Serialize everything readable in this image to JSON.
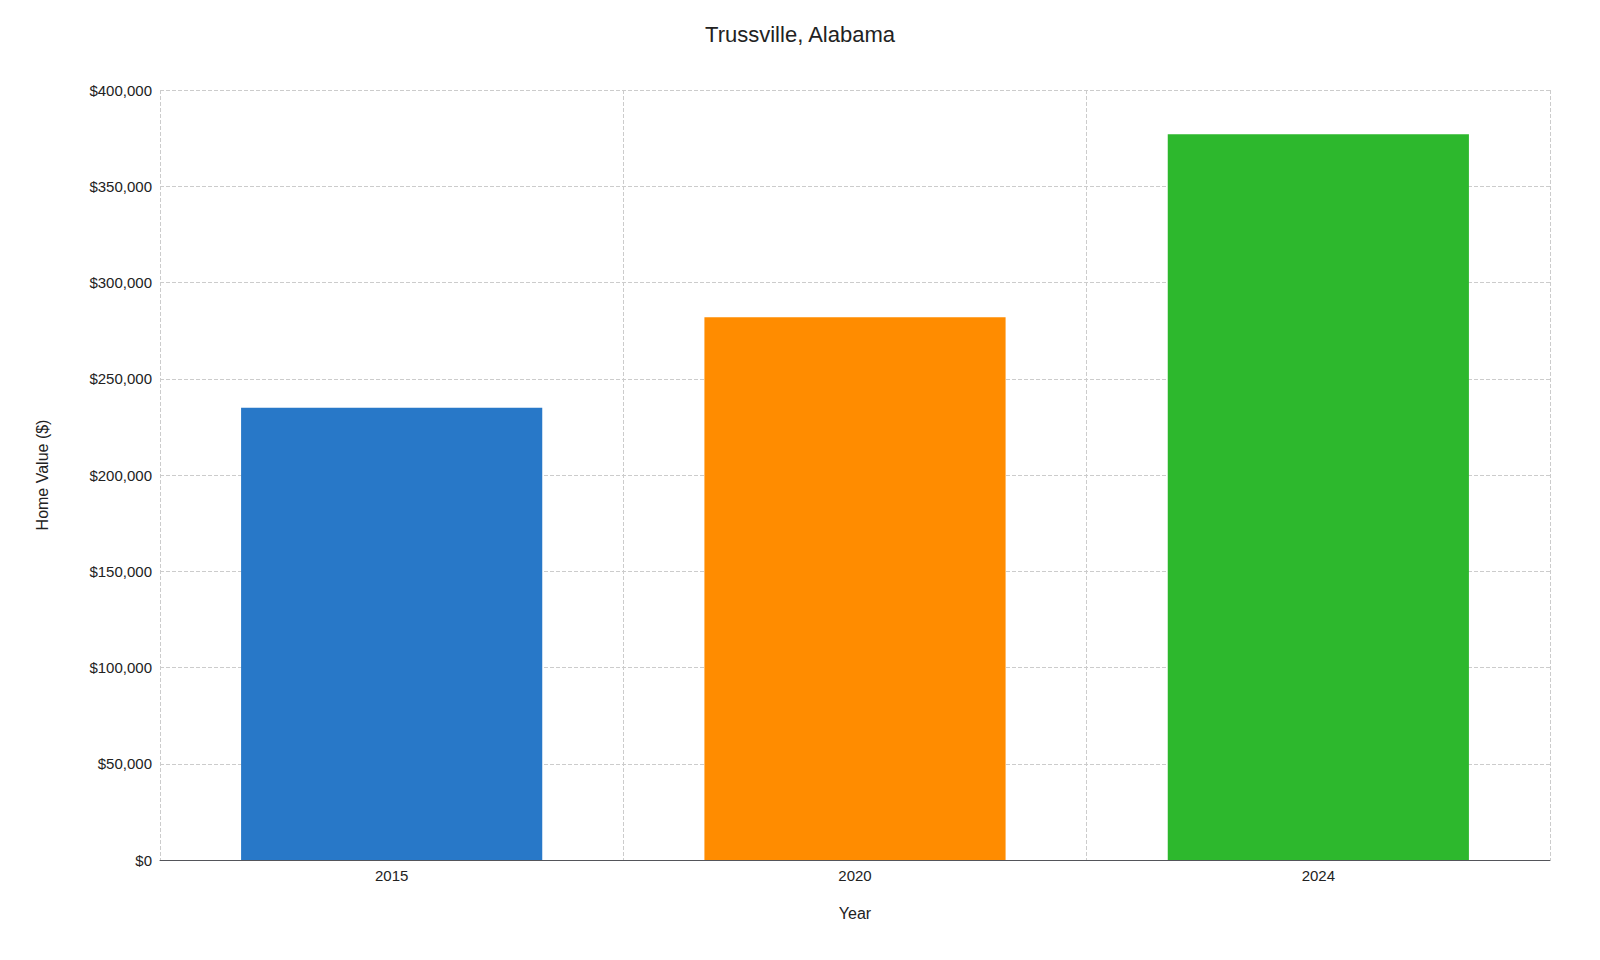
{
  "chart_data": {
    "type": "bar",
    "title": "Trussville, Alabama",
    "xlabel": "Year",
    "ylabel": "Home Value ($)",
    "categories": [
      "2015",
      "2020",
      "2024"
    ],
    "values": [
      235000,
      282000,
      377000
    ],
    "colors": [
      "#2878c8",
      "#ff8c00",
      "#2db82d"
    ],
    "ylim": [
      0,
      400000
    ],
    "yticks": [
      {
        "value": 0,
        "label": "$0"
      },
      {
        "value": 50000,
        "label": "$50,000"
      },
      {
        "value": 100000,
        "label": "$100,000"
      },
      {
        "value": 150000,
        "label": "$150,000"
      },
      {
        "value": 200000,
        "label": "$200,000"
      },
      {
        "value": 250000,
        "label": "$250,000"
      },
      {
        "value": 300000,
        "label": "$300,000"
      },
      {
        "value": 350000,
        "label": "$350,000"
      },
      {
        "value": 400000,
        "label": "$400,000"
      }
    ],
    "grid": true
  }
}
